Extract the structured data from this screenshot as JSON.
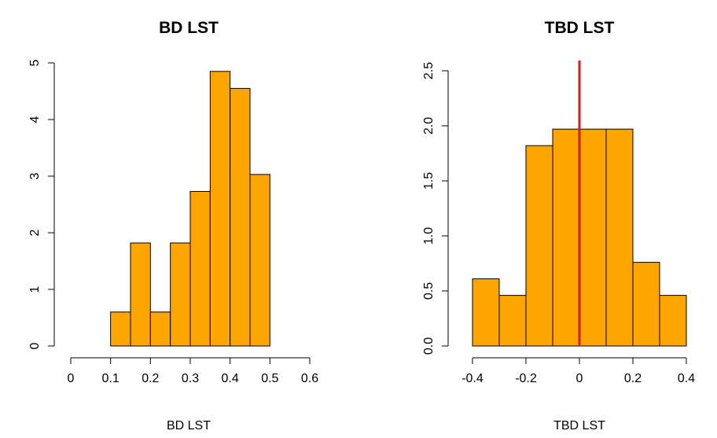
{
  "chart_data": [
    {
      "type": "bar",
      "title": "BD LST",
      "xlabel": "BD LST",
      "ylabel": "",
      "bar_color": "#FFA500",
      "xlim": [
        0,
        0.6
      ],
      "ylim": [
        0,
        5
      ],
      "x_ticks": [
        "0",
        "0.1",
        "0.2",
        "0.3",
        "0.4",
        "0.5",
        "0.6"
      ],
      "y_ticks": [
        "0",
        "1",
        "2",
        "3",
        "4",
        "5"
      ],
      "bins": [
        {
          "start": 0.1,
          "end": 0.15,
          "value": 0.6
        },
        {
          "start": 0.15,
          "end": 0.2,
          "value": 1.82
        },
        {
          "start": 0.2,
          "end": 0.25,
          "value": 0.6
        },
        {
          "start": 0.25,
          "end": 0.3,
          "value": 1.82
        },
        {
          "start": 0.3,
          "end": 0.35,
          "value": 2.73
        },
        {
          "start": 0.35,
          "end": 0.4,
          "value": 4.85
        },
        {
          "start": 0.4,
          "end": 0.45,
          "value": 4.55
        },
        {
          "start": 0.45,
          "end": 0.5,
          "value": 3.03
        }
      ],
      "grid": false
    },
    {
      "type": "bar",
      "title": "TBD LST",
      "xlabel": "TBD LST",
      "ylabel": "",
      "bar_color": "#FFA500",
      "reference_line": {
        "x": 0,
        "color": "#CC1F1F"
      },
      "xlim": [
        -0.4,
        0.4
      ],
      "ylim": [
        0,
        2.5
      ],
      "x_ticks": [
        "-0.4",
        "-0.2",
        "0",
        "0.2",
        "0.4"
      ],
      "y_ticks": [
        "0.0",
        "0.5",
        "1.0",
        "1.5",
        "2.0",
        "2.5"
      ],
      "bins": [
        {
          "start": -0.4,
          "end": -0.3,
          "value": 0.61
        },
        {
          "start": -0.3,
          "end": -0.2,
          "value": 0.46
        },
        {
          "start": -0.2,
          "end": -0.1,
          "value": 1.82
        },
        {
          "start": -0.1,
          "end": 0.0,
          "value": 1.97
        },
        {
          "start": 0.0,
          "end": 0.1,
          "value": 1.97
        },
        {
          "start": 0.1,
          "end": 0.2,
          "value": 1.97
        },
        {
          "start": 0.2,
          "end": 0.3,
          "value": 0.76
        },
        {
          "start": 0.3,
          "end": 0.4,
          "value": 0.46
        }
      ],
      "grid": false
    }
  ]
}
